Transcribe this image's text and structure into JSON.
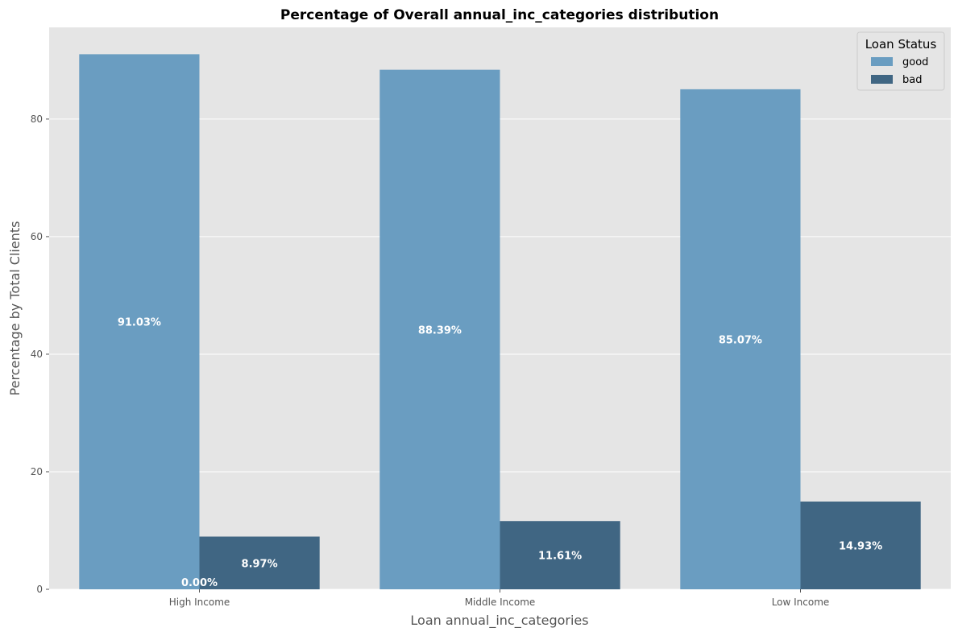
{
  "chart_data": {
    "type": "bar",
    "title": "Percentage of Overall annual_inc_categories distribution",
    "xlabel": "Loan annual_inc_categories",
    "ylabel": "Percentage by Total Clients",
    "categories": [
      "High Income",
      "Middle Income",
      "Low Income"
    ],
    "series": [
      {
        "name": "good",
        "values": [
          91.03,
          88.39,
          85.07
        ],
        "labels": [
          "91.03%",
          "88.39%",
          "85.07%"
        ],
        "color": "#6a9dc1"
      },
      {
        "name": "bad",
        "values": [
          8.97,
          11.61,
          14.93
        ],
        "labels": [
          "8.97%",
          "11.61%",
          "14.93%"
        ],
        "color": "#406683"
      }
    ],
    "extra_labels": [
      {
        "text": "0.00%",
        "category": "High Income",
        "value": 0
      }
    ],
    "ylim": [
      0,
      95.6
    ],
    "yticks": [
      0,
      20,
      40,
      60,
      80
    ],
    "grid": true,
    "legend": {
      "title": "Loan Status",
      "placement": "top-right"
    },
    "style": {
      "plot_background": "#e5e5e5",
      "grid_color": "#ffffff"
    }
  }
}
